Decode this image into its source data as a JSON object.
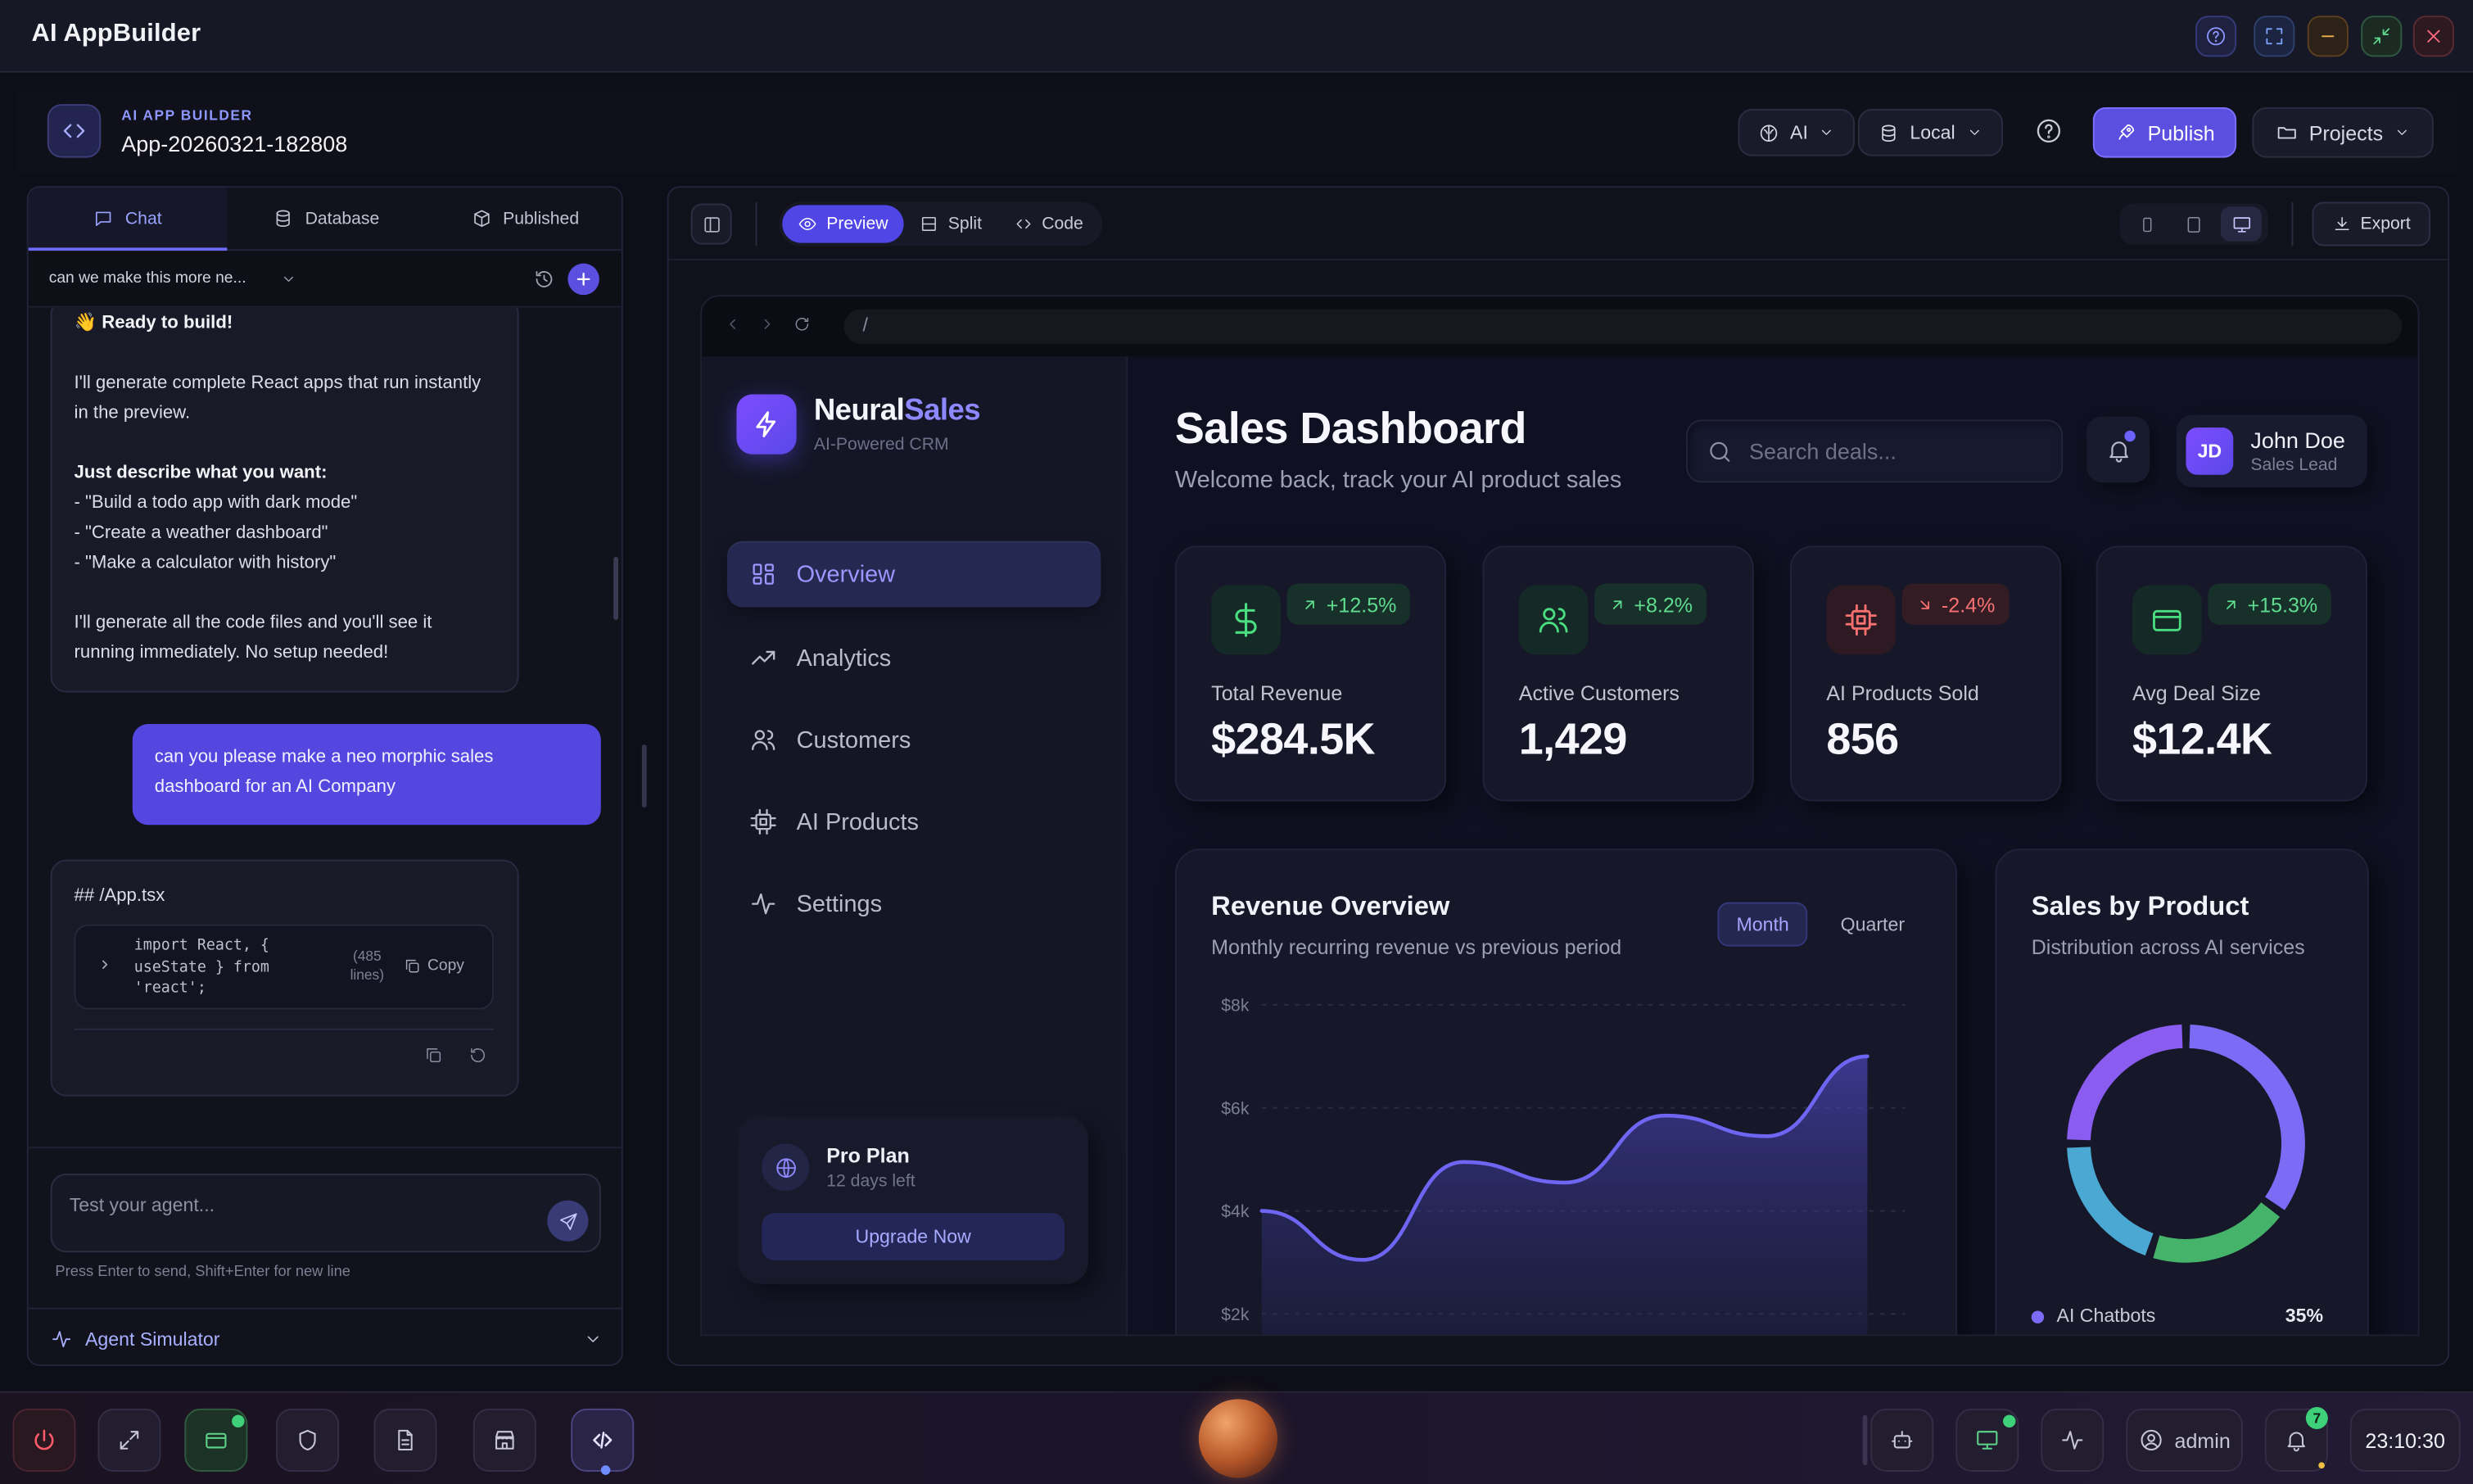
{
  "window": {
    "title": "AI AppBuilder"
  },
  "header": {
    "section_label": "AI APP BUILDER",
    "app_name": "App-20260321-182808",
    "ai_label": "AI",
    "storage_label": "Local",
    "publish_label": "Publish",
    "projects_label": "Projects"
  },
  "left_tabs": [
    {
      "label": "Chat"
    },
    {
      "label": "Database"
    },
    {
      "label": "Published"
    }
  ],
  "conversation": {
    "title": "can we make this more ne..."
  },
  "messages": {
    "ai_intro": {
      "title": "👋 Ready to build!",
      "p1": "I'll generate complete React apps that run instantly in the preview.",
      "describe": "Just describe what you want:",
      "ex1": "- \"Build a todo app with dark mode\"",
      "ex2": "- \"Create a weather dashboard\"",
      "ex3": "- \"Make a calculator with history\"",
      "p2": "I'll generate all the code files and you'll see it running immediately. No setup needed!"
    },
    "user": "can you please make a neo morphic sales dashboard for an AI Company",
    "code": {
      "heading": "## /App.tsx",
      "line1": "import React, {",
      "line2": "useState } from",
      "line3": "'react';",
      "lines_a": "(485",
      "lines_b": "lines)",
      "copy_label": "Copy"
    }
  },
  "composer": {
    "placeholder": "Test your agent...",
    "hint": "Press Enter to send, Shift+Enter for new line"
  },
  "agent_simulator": {
    "label": "Agent Simulator"
  },
  "preview_toolbar": {
    "preview": "Preview",
    "split": "Split",
    "code": "Code",
    "export": "Export"
  },
  "browser": {
    "url": "/"
  },
  "dashboard": {
    "brand_a": "Neural",
    "brand_b": "Sales",
    "brand_sub": "AI-Powered CRM",
    "nav": [
      {
        "label": "Overview"
      },
      {
        "label": "Analytics"
      },
      {
        "label": "Customers"
      },
      {
        "label": "AI Products"
      },
      {
        "label": "Settings"
      }
    ],
    "plan": {
      "name": "Pro Plan",
      "days": "12 days left",
      "cta": "Upgrade Now"
    },
    "title": "Sales Dashboard",
    "subtitle": "Welcome back, track your AI product sales",
    "search_placeholder": "Search deals...",
    "user": {
      "initials": "JD",
      "name": "John Doe",
      "role": "Sales Lead"
    },
    "stats": [
      {
        "label": "Total Revenue",
        "value": "$284.5K",
        "change": "+12.5%",
        "trend": "up"
      },
      {
        "label": "Active Customers",
        "value": "1,429",
        "change": "+8.2%",
        "trend": "up"
      },
      {
        "label": "AI Products Sold",
        "value": "856",
        "change": "-2.4%",
        "trend": "down"
      },
      {
        "label": "Avg Deal Size",
        "value": "$12.4K",
        "change": "+15.3%",
        "trend": "up"
      }
    ],
    "revenue": {
      "title": "Revenue Overview",
      "subtitle": "Monthly recurring revenue vs previous period",
      "toggle": [
        "Month",
        "Quarter"
      ]
    },
    "sales": {
      "title": "Sales by Product",
      "subtitle": "Distribution across AI services",
      "legend_first": "AI Chatbots",
      "legend_first_pct": "35%"
    }
  },
  "chart_data": [
    {
      "type": "area",
      "title": "Revenue Overview",
      "y_ticks": [
        "$8k",
        "$6k",
        "$4k",
        "$2k"
      ],
      "ylim": [
        2000,
        8000
      ],
      "values": [
        4000,
        3050,
        4950,
        4550,
        5850,
        5450,
        7000
      ],
      "grid": true
    },
    {
      "type": "pie",
      "title": "Sales by Product",
      "slices": [
        {
          "name": "AI Chatbots",
          "value": 35,
          "color": "#7c6cf5"
        },
        {
          "name": "",
          "value": 20,
          "color": "#45b46a"
        },
        {
          "name": "",
          "value": 20,
          "color": "#4aa8d2"
        },
        {
          "name": "",
          "value": 25,
          "color": "#8a5cf0"
        }
      ]
    }
  ],
  "taskbar": {
    "user": "admin",
    "notifications": "7",
    "clock": "23:10:30"
  },
  "colors": {
    "accent": "#5b4fe0",
    "up": "#4ade80",
    "down": "#f87171"
  }
}
